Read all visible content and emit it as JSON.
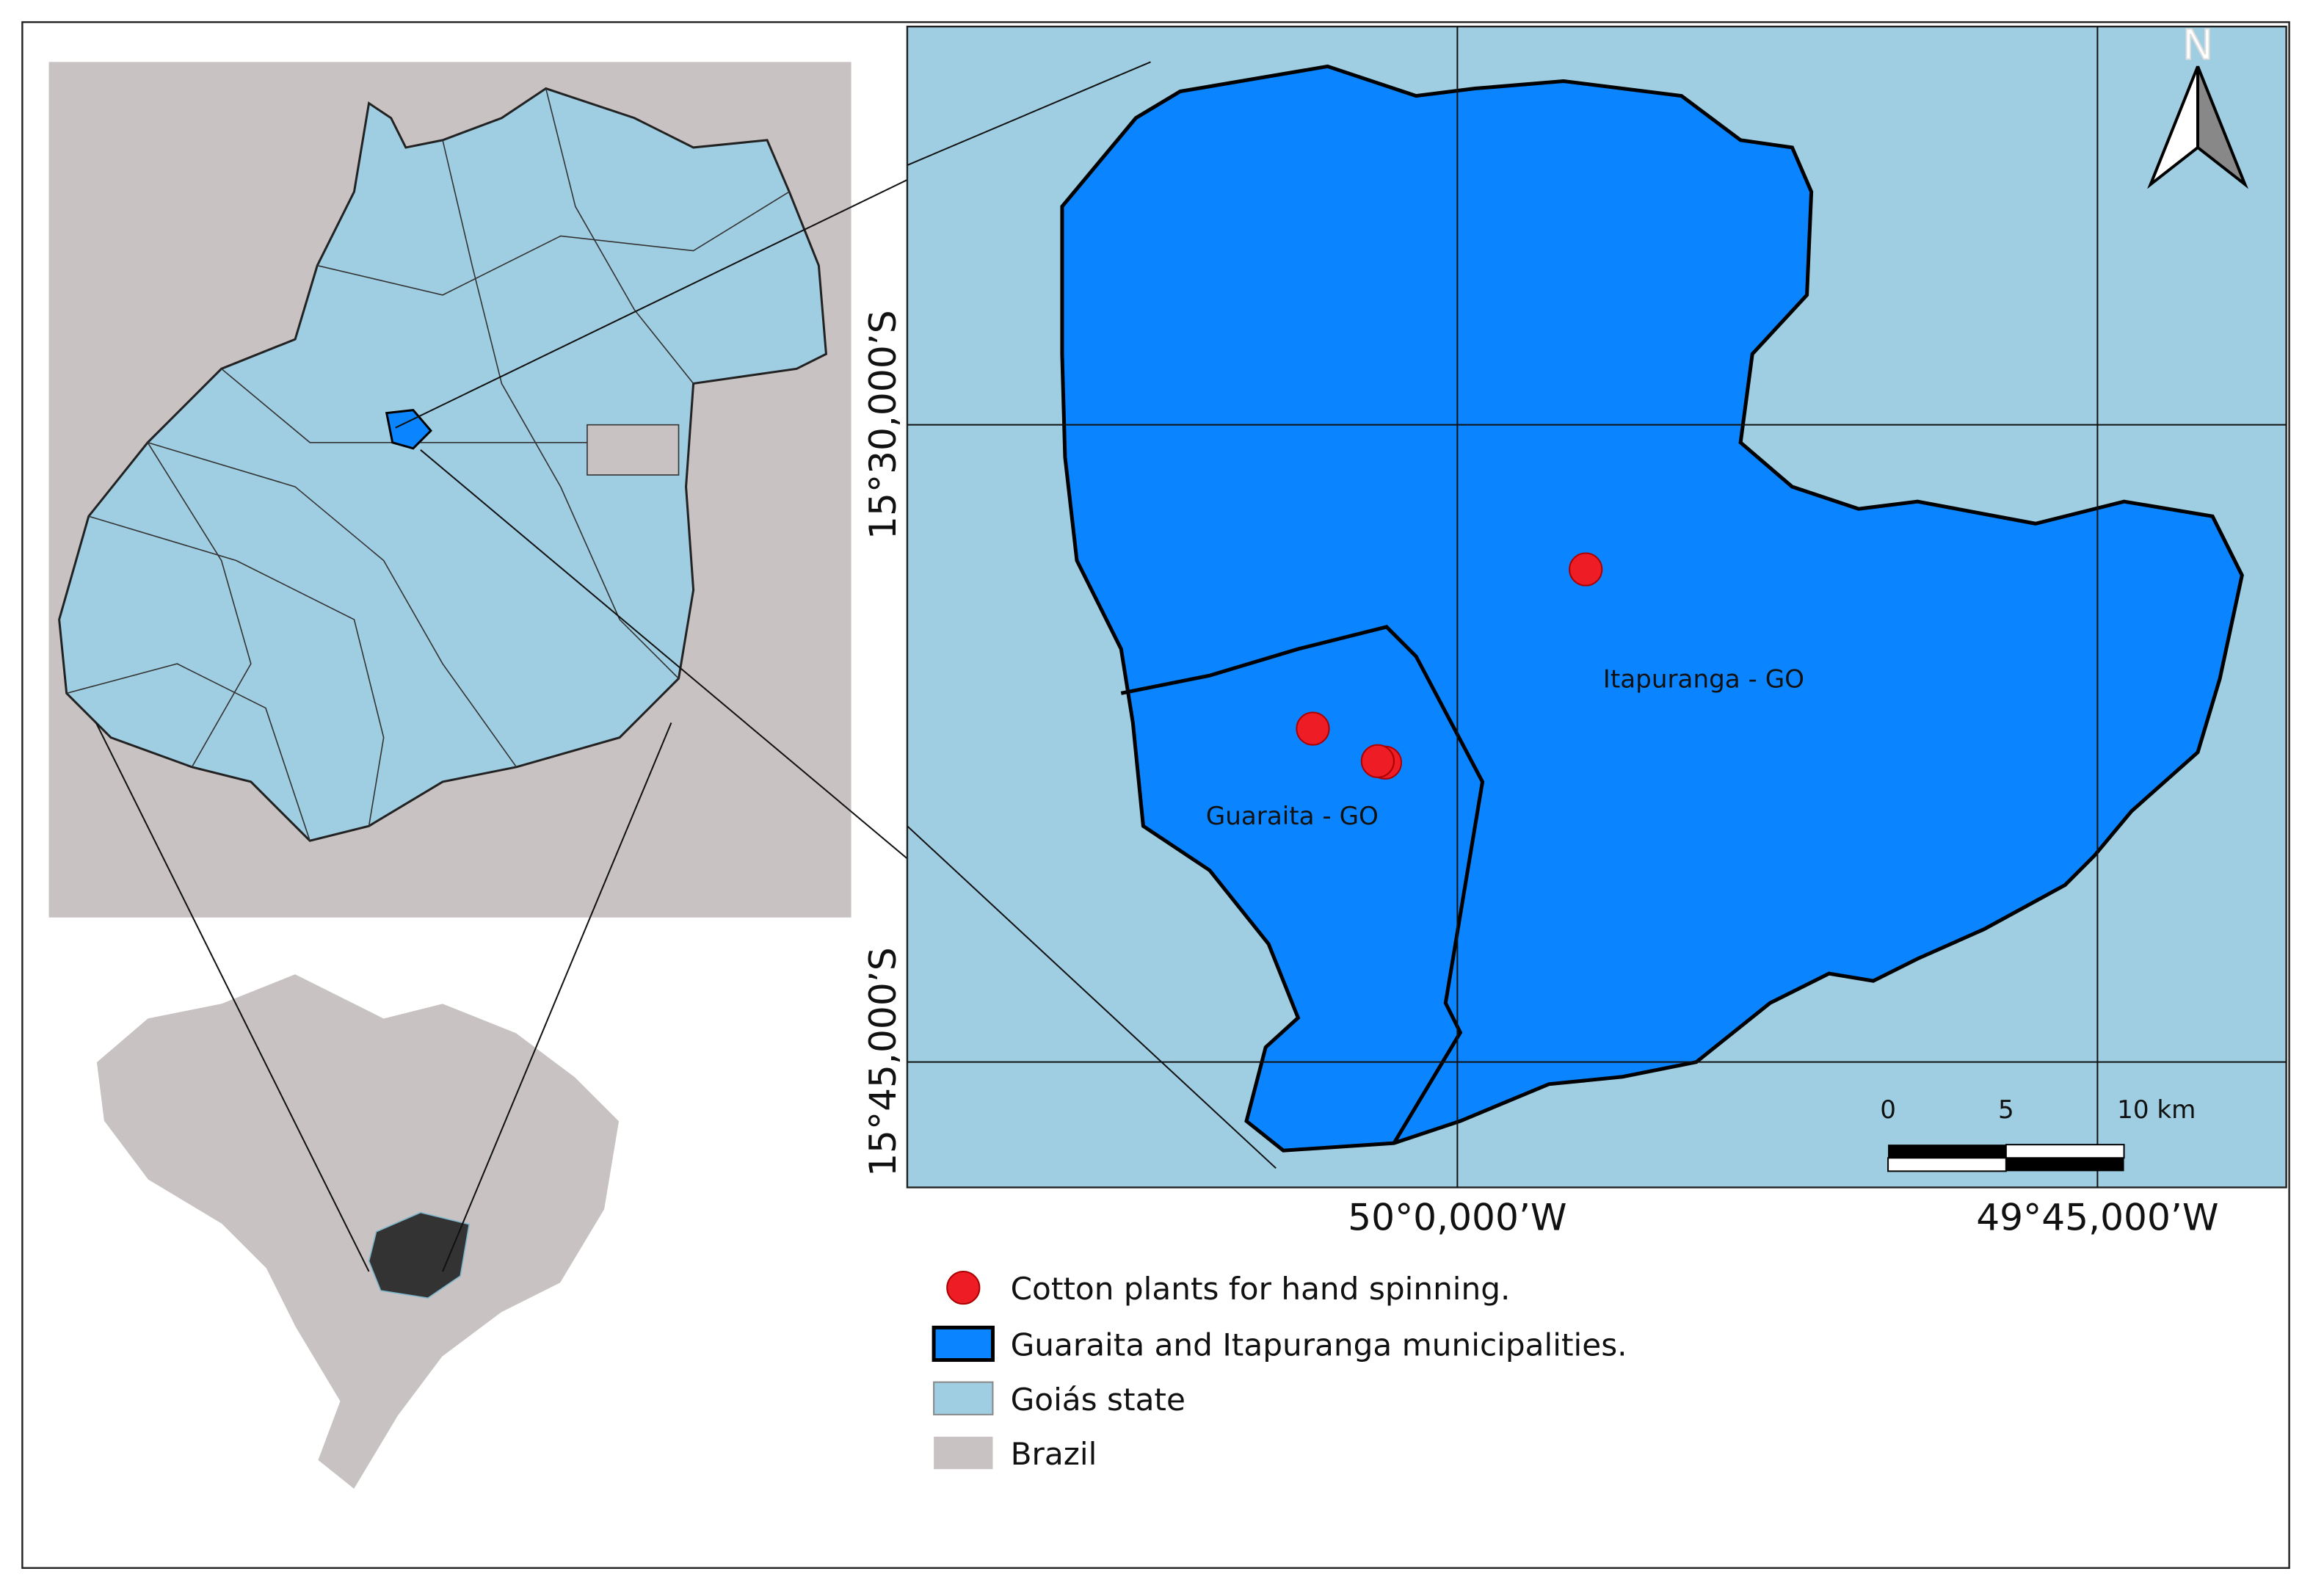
{
  "map": {
    "place_labels": [
      "Itapuranga - GO",
      "Guaraita - GO"
    ],
    "latitude_labels": [
      "15°30,000’S",
      "15°45,000’S"
    ],
    "longitude_labels": [
      "50°0,000’W",
      "49°45,000’W"
    ],
    "north": "N",
    "scale_labels": [
      "0",
      "5",
      "10 km"
    ],
    "legend": [
      "Cotton plants for hand spinning.",
      "Guaraita and Itapuranga municipalities.",
      "Goiás state",
      "Brazil"
    ]
  }
}
